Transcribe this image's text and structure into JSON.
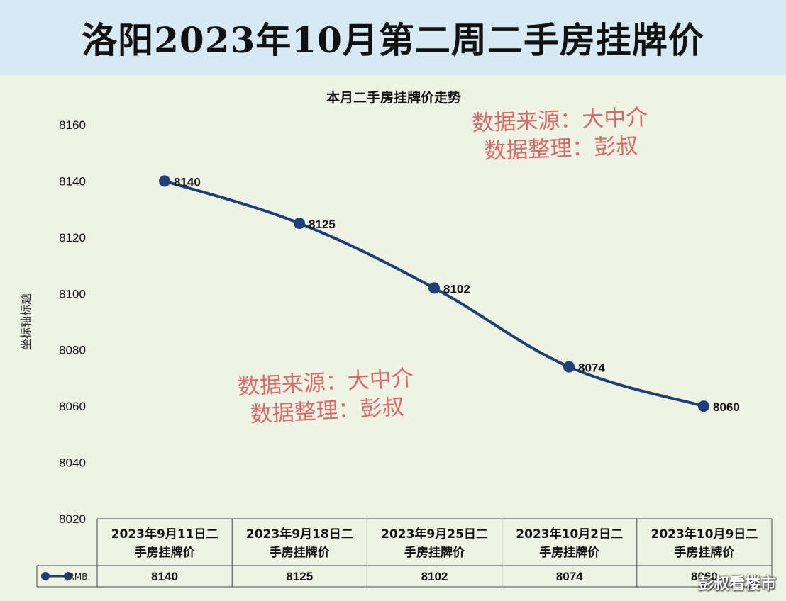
{
  "banner_title": "洛阳2023年10月第二周二手房挂牌价",
  "watermark": {
    "line1": "数据来源：大中介",
    "line2": "数据整理：彭叔"
  },
  "brand": "彭叔看楼市",
  "colors": {
    "series": "#1f3f7a",
    "watermark": "#d86a6a",
    "banner": "#d7e9f3",
    "plot_bg": "#eef3e4"
  },
  "chart_data": {
    "type": "line",
    "title": "本月二手房挂牌价走势",
    "ylabel": "坐标轴标题",
    "xlabel": "",
    "ylim": [
      8020,
      8160
    ],
    "yticks": [
      8160,
      8140,
      8120,
      8100,
      8080,
      8060,
      8040,
      8020
    ],
    "categories": [
      [
        "2023年9月11日二",
        "手房挂牌价"
      ],
      [
        "2023年9月18日二",
        "手房挂牌价"
      ],
      [
        "2023年9月25日二",
        "手房挂牌价"
      ],
      [
        "2023年10月2日二",
        "手房挂牌价"
      ],
      [
        "2023年10月9日二",
        "手房挂牌价"
      ]
    ],
    "series": [
      {
        "name": "RMB",
        "values": [
          8140,
          8125,
          8102,
          8074,
          8060
        ]
      }
    ],
    "grid": false,
    "legend": "data-table"
  }
}
